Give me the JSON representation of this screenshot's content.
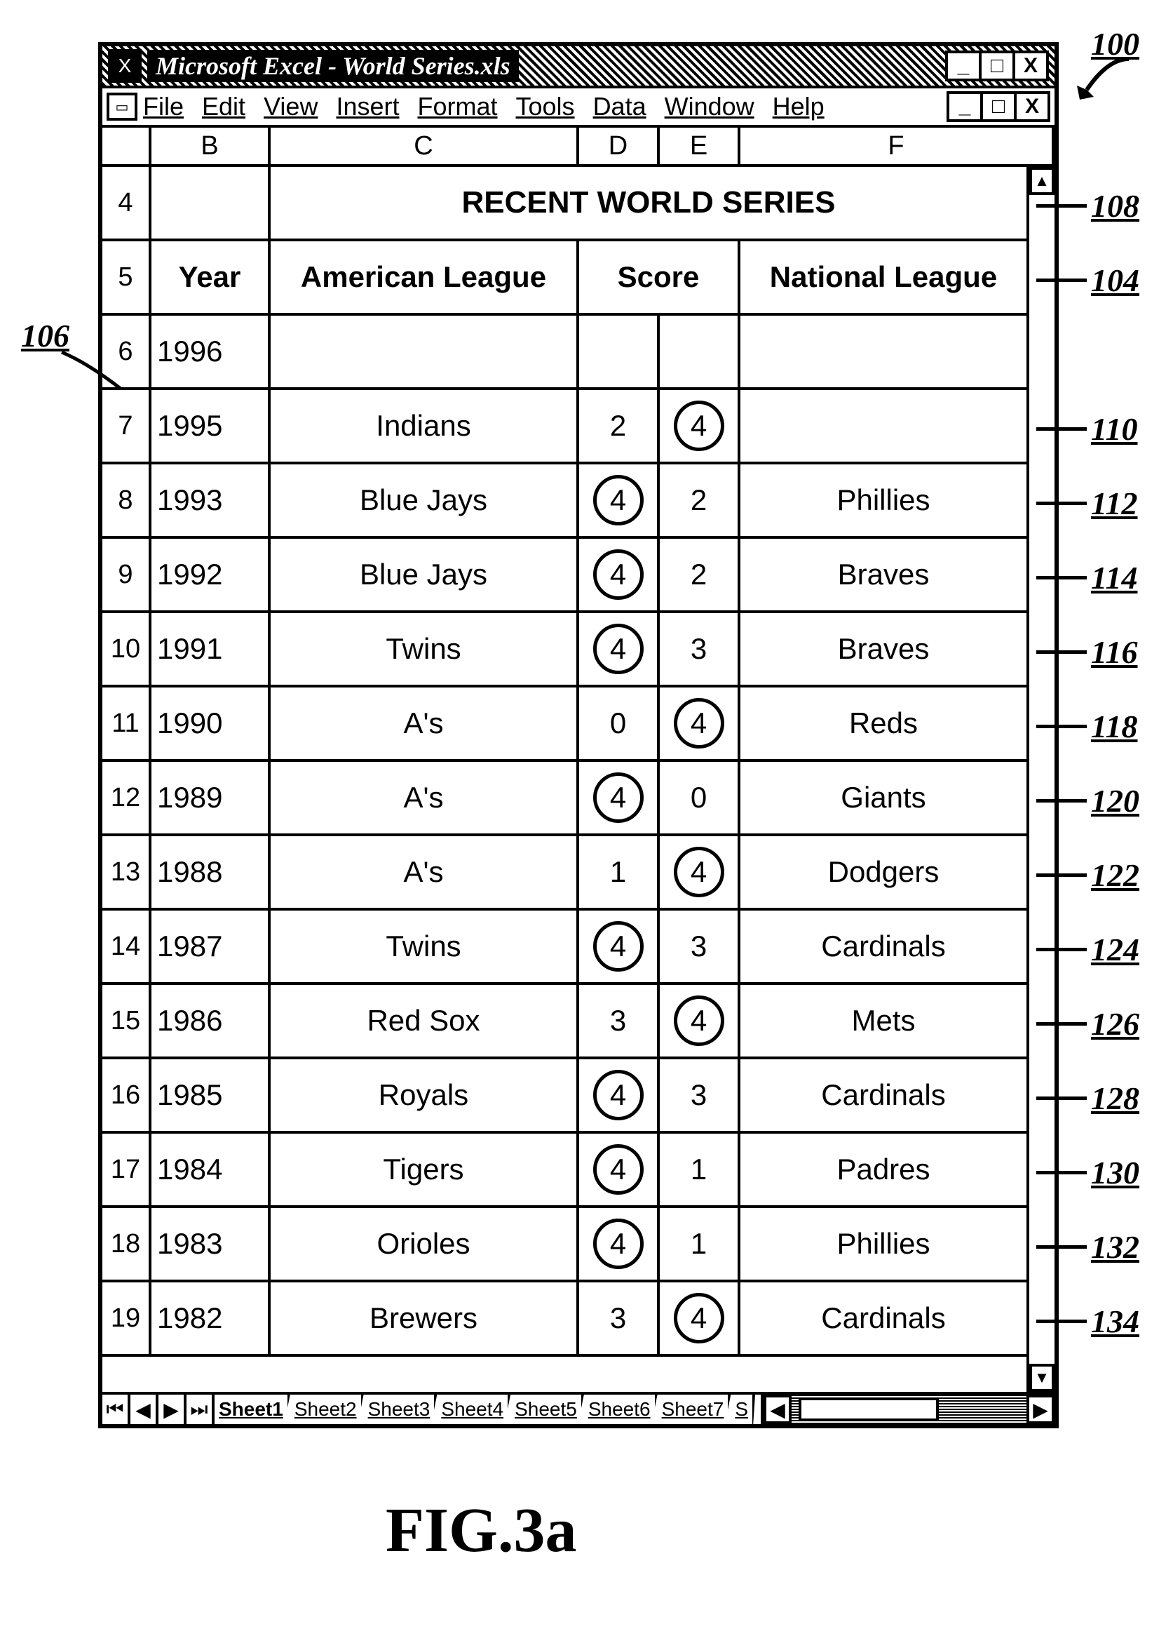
{
  "figure_caption": "FIG.3a",
  "top_callout": "100",
  "window": {
    "title": "Microsoft Excel - World Series.xls",
    "controls": {
      "min": "_",
      "max": "□",
      "close": "X"
    }
  },
  "menu": [
    "File",
    "Edit",
    "View",
    "Insert",
    "Format",
    "Tools",
    "Data",
    "Window",
    "Help"
  ],
  "columns": [
    "",
    "B",
    "C",
    "D",
    "E",
    "F"
  ],
  "title_row_num": "4",
  "title_row_text": "RECENT WORLD SERIES",
  "header_row_num": "5",
  "header": {
    "year": "Year",
    "al": "American League",
    "score": "Score",
    "nl": "National League"
  },
  "rows": [
    {
      "n": "6",
      "year": "1996",
      "al": "",
      "d": "",
      "e": "",
      "nl": ""
    },
    {
      "n": "7",
      "year": "1995",
      "al": "Indians",
      "d": "2",
      "e": "4",
      "nl": "",
      "circle_d": false,
      "circle_e": true
    },
    {
      "n": "8",
      "year": "1993",
      "al": "Blue Jays",
      "d": "4",
      "e": "2",
      "nl": "Phillies",
      "circle_d": true,
      "circle_e": false
    },
    {
      "n": "9",
      "year": "1992",
      "al": "Blue Jays",
      "d": "4",
      "e": "2",
      "nl": "Braves",
      "circle_d": true,
      "circle_e": false
    },
    {
      "n": "10",
      "year": "1991",
      "al": "Twins",
      "d": "4",
      "e": "3",
      "nl": "Braves",
      "circle_d": true,
      "circle_e": false
    },
    {
      "n": "11",
      "year": "1990",
      "al": "A's",
      "d": "0",
      "e": "4",
      "nl": "Reds",
      "circle_d": false,
      "circle_e": true
    },
    {
      "n": "12",
      "year": "1989",
      "al": "A's",
      "d": "4",
      "e": "0",
      "nl": "Giants",
      "circle_d": true,
      "circle_e": false
    },
    {
      "n": "13",
      "year": "1988",
      "al": "A's",
      "d": "1",
      "e": "4",
      "nl": "Dodgers",
      "circle_d": false,
      "circle_e": true
    },
    {
      "n": "14",
      "year": "1987",
      "al": "Twins",
      "d": "4",
      "e": "3",
      "nl": "Cardinals",
      "circle_d": true,
      "circle_e": false
    },
    {
      "n": "15",
      "year": "1986",
      "al": "Red Sox",
      "d": "3",
      "e": "4",
      "nl": "Mets",
      "circle_d": false,
      "circle_e": true
    },
    {
      "n": "16",
      "year": "1985",
      "al": "Royals",
      "d": "4",
      "e": "3",
      "nl": "Cardinals",
      "circle_d": true,
      "circle_e": false
    },
    {
      "n": "17",
      "year": "1984",
      "al": "Tigers",
      "d": "4",
      "e": "1",
      "nl": "Padres",
      "circle_d": true,
      "circle_e": false
    },
    {
      "n": "18",
      "year": "1983",
      "al": "Orioles",
      "d": "4",
      "e": "1",
      "nl": "Phillies",
      "circle_d": true,
      "circle_e": false
    },
    {
      "n": "19",
      "year": "1982",
      "al": "Brewers",
      "d": "3",
      "e": "4",
      "nl": "Cardinals",
      "circle_d": false,
      "circle_e": true
    }
  ],
  "sheets": [
    "Sheet1",
    "Sheet2",
    "Sheet3",
    "Sheet4",
    "Sheet5",
    "Sheet6",
    "Sheet7",
    "S"
  ],
  "nav_glyphs": {
    "first": "⏮",
    "prev": "◀",
    "next": "▶",
    "last": "⏭",
    "left": "◀",
    "right": "▶",
    "up": "▲",
    "down": "▼"
  },
  "callouts": {
    "title_row": "108",
    "header_row": "104",
    "row_area": "106",
    "rows": [
      "110",
      "112",
      "114",
      "116",
      "118",
      "120",
      "122",
      "124",
      "126",
      "128",
      "130",
      "132",
      "134"
    ]
  }
}
